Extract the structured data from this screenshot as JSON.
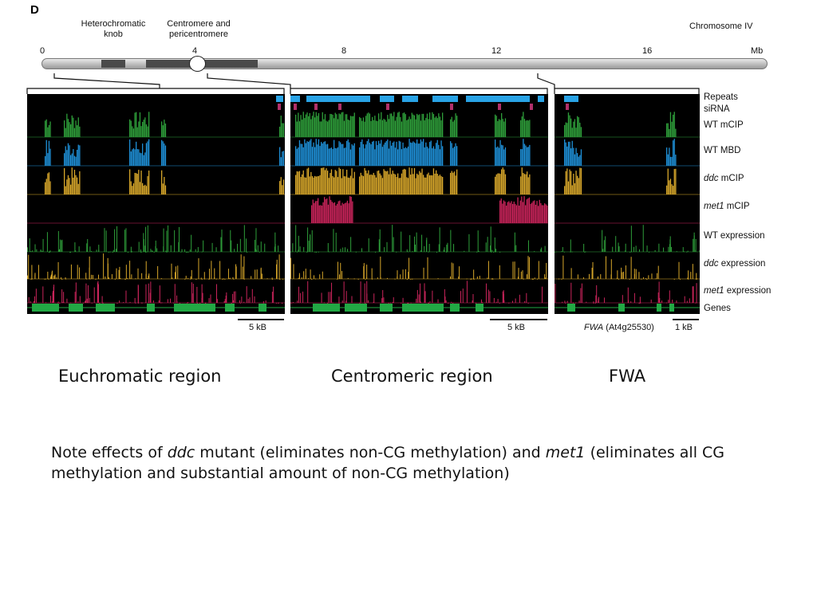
{
  "figure": {
    "panel_letter": "D",
    "chromosome_name": "Chromosome IV",
    "annotations": {
      "heterochromatic_knob_line1": "Heterochromatic",
      "heterochromatic_knob_line2": "knob",
      "centromere_line1": "Centromere and",
      "centromere_line2": "pericentromere"
    },
    "axis": {
      "ticks": [
        "0",
        "4",
        "8",
        "12",
        "16"
      ],
      "unit": "Mb"
    },
    "tracks": [
      {
        "label": "Repeats",
        "italic_prefix": ""
      },
      {
        "label": "siRNA",
        "italic_prefix": ""
      },
      {
        "label": " mCIP",
        "italic_prefix": "",
        "plain_prefix": "WT"
      },
      {
        "label": " MBD",
        "italic_prefix": "",
        "plain_prefix": "WT"
      },
      {
        "label": " mCIP",
        "italic_prefix": "ddc"
      },
      {
        "label": " mCIP",
        "italic_prefix": "met1"
      },
      {
        "label": " expression",
        "italic_prefix": "",
        "plain_prefix": "WT"
      },
      {
        "label": " expression",
        "italic_prefix": "ddc"
      },
      {
        "label": " expression",
        "italic_prefix": "met1"
      },
      {
        "label": "Genes",
        "italic_prefix": ""
      }
    ],
    "scale_bars": {
      "euchromatic": "5 kB",
      "centromeric": "5 kB",
      "fwa_gene_italic": "FWA",
      "fwa_gene_id": " (At4g25530)",
      "fwa": "1 kB"
    },
    "colors": {
      "wt_mcip": "#2e9e3a",
      "wt_mbd": "#1e8fd6",
      "ddc_mcip": "#d6a62a",
      "met1_mcip": "#c8245a",
      "repeats": "#29a3e6",
      "sirna": "#b0306a",
      "genes": "#22a844",
      "panel_bg": "#000000"
    }
  },
  "region_labels": {
    "euchromatic": "Euchromatic region",
    "centromeric": "Centromeric region",
    "fwa": "FWA"
  },
  "note": {
    "part1": "Note effects of ",
    "ddc": "ddc",
    "part2": " mutant (eliminates non-CG methylation) and ",
    "met1": "met1",
    "part3": " (eliminates all CG methylation and substantial amount of non-CG methylation)"
  }
}
